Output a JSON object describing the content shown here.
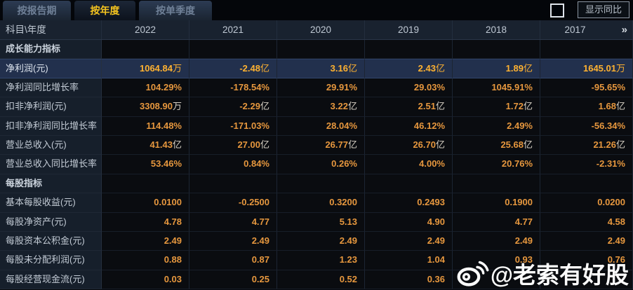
{
  "tabs": [
    {
      "label": "按报告期",
      "active": false
    },
    {
      "label": "按年度",
      "active": true
    },
    {
      "label": "按单季度",
      "active": false
    }
  ],
  "controls": {
    "show_yoy_label": "显示同比",
    "checkbox_checked": false
  },
  "table": {
    "corner_label": "科目\\年度",
    "years": [
      "2022",
      "2021",
      "2020",
      "2019",
      "2018",
      "2017"
    ],
    "more_arrow": "»",
    "rows": [
      {
        "type": "section",
        "label": "成长能力指标",
        "values": [
          "",
          "",
          "",
          "",
          "",
          ""
        ]
      },
      {
        "type": "highlight",
        "label": "净利润(元)",
        "values": [
          "1064.84万",
          "-2.48亿",
          "3.16亿",
          "2.43亿",
          "1.89亿",
          "1645.01万"
        ]
      },
      {
        "type": "data",
        "label": "净利润同比增长率",
        "values": [
          "104.29%",
          "-178.54%",
          "29.91%",
          "29.03%",
          "1045.91%",
          "-95.65%"
        ]
      },
      {
        "type": "data",
        "label": "扣非净利润(元)",
        "values": [
          "3308.90万",
          "-2.29亿",
          "3.22亿",
          "2.51亿",
          "1.72亿",
          "1.68亿"
        ]
      },
      {
        "type": "data",
        "label": "扣非净利润同比增长率",
        "values": [
          "114.48%",
          "-171.03%",
          "28.04%",
          "46.12%",
          "2.49%",
          "-56.34%"
        ]
      },
      {
        "type": "data",
        "label": "营业总收入(元)",
        "values": [
          "41.43亿",
          "27.00亿",
          "26.77亿",
          "26.70亿",
          "25.68亿",
          "21.26亿"
        ]
      },
      {
        "type": "data",
        "label": "营业总收入同比增长率",
        "values": [
          "53.46%",
          "0.84%",
          "0.26%",
          "4.00%",
          "20.76%",
          "-2.31%"
        ]
      },
      {
        "type": "section",
        "label": "每股指标",
        "values": [
          "",
          "",
          "",
          "",
          "",
          ""
        ]
      },
      {
        "type": "data",
        "label": "基本每股收益(元)",
        "values": [
          "0.0100",
          "-0.2500",
          "0.3200",
          "0.2493",
          "0.1900",
          "0.0200"
        ]
      },
      {
        "type": "data",
        "label": "每股净资产(元)",
        "values": [
          "4.78",
          "4.77",
          "5.13",
          "4.90",
          "4.77",
          "4.58"
        ]
      },
      {
        "type": "data",
        "label": "每股资本公积金(元)",
        "values": [
          "2.49",
          "2.49",
          "2.49",
          "2.49",
          "2.49",
          "2.49"
        ]
      },
      {
        "type": "data",
        "label": "每股未分配利润(元)",
        "values": [
          "0.88",
          "0.87",
          "1.23",
          "1.04",
          "0.93",
          "0.76"
        ]
      },
      {
        "type": "data",
        "label": "每股经营现金流(元)",
        "values": [
          "0.03",
          "0.25",
          "0.52",
          "0.36",
          "",
          ""
        ]
      }
    ]
  },
  "watermark": {
    "handle": "@老索有好股",
    "icon": "weibo-icon"
  },
  "colors": {
    "value_orange": "#e6973e",
    "highlight_value": "#ffb231",
    "active_tab_text": "#f6c51f",
    "label_text": "#c3cbd5",
    "highlight_row_bg": "#22304d",
    "label_col_bg": "#161f2b",
    "header_bg": "#19222f"
  }
}
